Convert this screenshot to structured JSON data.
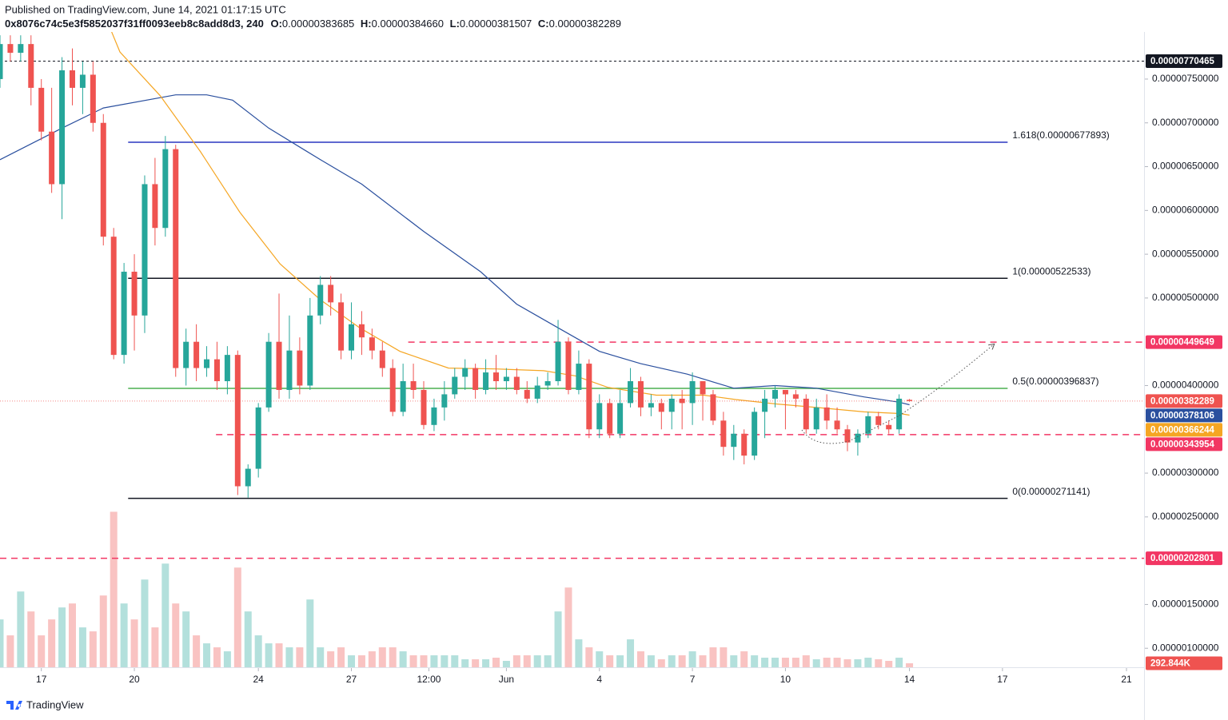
{
  "header": {
    "published": "Published on TradingView.com, June 14, 2021 01:17:15 UTC",
    "symbol": "0x8076c74c5e3f5852037f31ff0093eeb8c8add8d3, 240",
    "ohlc": [
      {
        "key": "O:",
        "value": "0.00000383685"
      },
      {
        "key": "H:",
        "value": "0.00000384660"
      },
      {
        "key": "L:",
        "value": "0.00000381507"
      },
      {
        "key": "C:",
        "value": "0.00000382289"
      }
    ]
  },
  "footer": {
    "brand": "TradingView"
  },
  "chart_data": {
    "type": "candlestick",
    "xlim": [
      0,
      110.7
    ],
    "xticks": [
      {
        "value": 4,
        "label": "17"
      },
      {
        "value": 13,
        "label": "20"
      },
      {
        "value": 25,
        "label": "24"
      },
      {
        "value": 34,
        "label": "27"
      },
      {
        "value": 41.5,
        "label": "12:00"
      },
      {
        "value": 49,
        "label": "Jun"
      },
      {
        "value": 58,
        "label": "4"
      },
      {
        "value": 67,
        "label": "7"
      },
      {
        "value": 76,
        "label": "10"
      },
      {
        "value": 88,
        "label": "14"
      },
      {
        "value": 97,
        "label": "17"
      },
      {
        "value": 109,
        "label": "21"
      }
    ],
    "ylim": [
      7.83e-07,
      8.038e-06
    ],
    "yticks": [
      {
        "value": 7.5e-06,
        "label": "0.00000750000"
      },
      {
        "value": 7e-06,
        "label": "0.00000700000"
      },
      {
        "value": 6.5e-06,
        "label": "0.00000650000"
      },
      {
        "value": 6e-06,
        "label": "0.00000600000"
      },
      {
        "value": 5.5e-06,
        "label": "0.00000550000"
      },
      {
        "value": 5e-06,
        "label": "0.00000500000"
      },
      {
        "value": 4e-06,
        "label": "0.00000400000"
      },
      {
        "value": 3e-06,
        "label": "0.00000300000"
      },
      {
        "value": 2.5e-06,
        "label": "0.00000250000"
      },
      {
        "value": 1.5e-06,
        "label": "0.00000150000"
      },
      {
        "value": 1e-06,
        "label": "0.00000100000"
      }
    ],
    "up_color": "#26a69a",
    "down_color": "#ef5350",
    "open": [
      7.5e-06,
      7.9e-06,
      7.8e-06,
      7.9e-06,
      7.4e-06,
      6.9e-06,
      6.3e-06,
      7.6e-06,
      7.4e-06,
      7.55e-06,
      7e-06,
      5.7e-06,
      4.35e-06,
      5.3e-06,
      4.8e-06,
      6.3e-06,
      5.8e-06,
      6.7e-06,
      4.2e-06,
      4.5e-06,
      4.2e-06,
      4.3e-06,
      4.05e-06,
      4.35e-06,
      2.85e-06,
      3.05e-06,
      3.75e-06,
      4.5e-06,
      3.95e-06,
      4.4e-06,
      4e-06,
      4.8e-06,
      5.15e-06,
      4.95e-06,
      4.4e-06,
      4.7e-06,
      4.55e-06,
      4.4e-06,
      4.2e-06,
      3.7e-06,
      4.05e-06,
      3.95e-06,
      3.55e-06,
      3.75e-06,
      3.9e-06,
      4.1e-06,
      4.2e-06,
      3.95e-06,
      4.15e-06,
      4.05e-06,
      4.1e-06,
      3.95e-06,
      3.85e-06,
      4e-06,
      4.05e-06,
      4.5e-06,
      3.95e-06,
      4.25e-06,
      3.5e-06,
      3.8e-06,
      3.45e-06,
      3.8e-06,
      4.05e-06,
      3.75e-06,
      3.8e-06,
      3.7e-06,
      3.85e-06,
      3.8e-06,
      4.05e-06,
      3.9e-06,
      3.6e-06,
      3.3e-06,
      3.45e-06,
      3.2e-06,
      3.7e-06,
      3.85e-06,
      3.95e-06,
      3.9e-06,
      3.85e-06,
      3.5e-06,
      3.75e-06,
      3.6e-06,
      3.5e-06,
      3.35e-06,
      3.45e-06,
      3.65e-06,
      3.55e-06,
      3.5e-06,
      3.83685e-06
    ],
    "high": [
      8e-06,
      8e-06,
      8e-06,
      8e-06,
      7.5e-06,
      7.4e-06,
      7.75e-06,
      7.85e-06,
      7.7e-06,
      7.7e-06,
      7.1e-06,
      5.8e-06,
      5.4e-06,
      5.5e-06,
      6.4e-06,
      6.6e-06,
      6.85e-06,
      6.75e-06,
      4.65e-06,
      4.7e-06,
      4.45e-06,
      4.5e-06,
      4.45e-06,
      4.4e-06,
      3.1e-06,
      3.8e-06,
      4.6e-06,
      5.05e-06,
      4.8e-06,
      4.55e-06,
      5e-06,
      5.25e-06,
      5.25e-06,
      5.05e-06,
      4.95e-06,
      4.85e-06,
      4.65e-06,
      4.5e-06,
      4.3e-06,
      4.25e-06,
      4.25e-06,
      4.05e-06,
      3.85e-06,
      4.05e-06,
      4.2e-06,
      4.3e-06,
      4.25e-06,
      4.3e-06,
      4.35e-06,
      4.2e-06,
      4.2e-06,
      4.05e-06,
      4.1e-06,
      4.15e-06,
      4.75e-06,
      4.55e-06,
      4.4e-06,
      4.3e-06,
      3.9e-06,
      3.85e-06,
      3.95e-06,
      4.2e-06,
      4.1e-06,
      3.9e-06,
      3.85e-06,
      3.9e-06,
      3.95e-06,
      4.15e-06,
      4.05e-06,
      3.95e-06,
      3.7e-06,
      3.55e-06,
      3.5e-06,
      3.75e-06,
      3.95e-06,
      4e-06,
      3.95e-06,
      3.95e-06,
      3.9e-06,
      3.85e-06,
      3.9e-06,
      3.75e-06,
      3.55e-06,
      3.5e-06,
      3.7e-06,
      3.7e-06,
      3.6e-06,
      3.9e-06,
      3.8466e-06
    ],
    "low": [
      7.4e-06,
      7.7e-06,
      7.7e-06,
      7.2e-06,
      6.8e-06,
      6.2e-06,
      5.9e-06,
      7.2e-06,
      7.1e-06,
      6.9e-06,
      5.6e-06,
      4.3e-06,
      4.25e-06,
      4.4e-06,
      4.6e-06,
      5.6e-06,
      5.7e-06,
      4.1e-06,
      4e-06,
      4.05e-06,
      4.1e-06,
      3.95e-06,
      3.9e-06,
      2.75e-06,
      2.72e-06,
      2.95e-06,
      3.7e-06,
      3.85e-06,
      3.85e-06,
      3.9e-06,
      3.95e-06,
      4.7e-06,
      4.8e-06,
      4.3e-06,
      4.3e-06,
      4.35e-06,
      4.3e-06,
      4.1e-06,
      3.65e-06,
      3.65e-06,
      3.85e-06,
      3.5e-06,
      3.48e-06,
      3.6e-06,
      3.85e-06,
      3.95e-06,
      3.85e-06,
      3.9e-06,
      3.95e-06,
      3.95e-06,
      3.9e-06,
      3.8e-06,
      3.8e-06,
      3.95e-06,
      4e-06,
      3.9e-06,
      3.9e-06,
      3.4e-06,
      3.4e-06,
      3.4e-06,
      3.4e-06,
      3.75e-06,
      3.65e-06,
      3.65e-06,
      3.5e-06,
      3.5e-06,
      3.5e-06,
      3.55e-06,
      3.6e-06,
      3.55e-06,
      3.2e-06,
      3.15e-06,
      3.1e-06,
      3.15e-06,
      3.4e-06,
      3.75e-06,
      3.5e-06,
      3.75e-06,
      3.45e-06,
      3.45e-06,
      3.5e-06,
      3.45e-06,
      3.25e-06,
      3.2e-06,
      3.4e-06,
      3.5e-06,
      3.45e-06,
      3.45e-06,
      3.81507e-06
    ],
    "close": [
      7.9e-06,
      7.8e-06,
      7.9e-06,
      7.4e-06,
      6.9e-06,
      6.3e-06,
      7.6e-06,
      7.4e-06,
      7.55e-06,
      7e-06,
      5.7e-06,
      4.35e-06,
      5.3e-06,
      4.8e-06,
      6.3e-06,
      5.8e-06,
      6.7e-06,
      4.2e-06,
      4.5e-06,
      4.2e-06,
      4.3e-06,
      4.05e-06,
      4.35e-06,
      2.85e-06,
      3.05e-06,
      3.75e-06,
      4.5e-06,
      3.95e-06,
      4.4e-06,
      4e-06,
      4.8e-06,
      5.15e-06,
      4.95e-06,
      4.4e-06,
      4.7e-06,
      4.55e-06,
      4.4e-06,
      4.2e-06,
      3.7e-06,
      4.05e-06,
      3.95e-06,
      3.55e-06,
      3.75e-06,
      3.9e-06,
      4.1e-06,
      4.2e-06,
      3.95e-06,
      4.15e-06,
      4.05e-06,
      4.1e-06,
      3.95e-06,
      3.85e-06,
      4e-06,
      4.05e-06,
      4.5e-06,
      3.95e-06,
      4.25e-06,
      3.5e-06,
      3.8e-06,
      3.45e-06,
      3.8e-06,
      4.05e-06,
      3.75e-06,
      3.8e-06,
      3.7e-06,
      3.85e-06,
      3.8e-06,
      4.05e-06,
      3.9e-06,
      3.6e-06,
      3.3e-06,
      3.45e-06,
      3.2e-06,
      3.7e-06,
      3.85e-06,
      3.95e-06,
      3.9e-06,
      3.85e-06,
      3.5e-06,
      3.75e-06,
      3.6e-06,
      3.5e-06,
      3.35e-06,
      3.45e-06,
      3.65e-06,
      3.55e-06,
      3.5e-06,
      3.85e-06,
      3.82289e-06
    ],
    "close_label": "0.00000382289",
    "volume_lim": [
      0,
      13800000
    ],
    "volume": [
      3516000,
      2344000,
      5567000,
      4102000,
      2344000,
      3516000,
      4395000,
      4688000,
      2930000,
      2637000,
      5274000,
      11427000,
      4688000,
      3516000,
      6446000,
      2930000,
      7618000,
      4688000,
      4102000,
      2344000,
      1758000,
      1465000,
      1172000,
      7325000,
      4102000,
      2344000,
      1758000,
      1758000,
      1465000,
      1465000,
      4981000,
      1465000,
      1172000,
      1465000,
      879000,
      879000,
      1172000,
      1465000,
      1465000,
      1172000,
      879000,
      879000,
      879000,
      879000,
      879000,
      586000,
      586000,
      586000,
      703000,
      469000,
      879000,
      879000,
      879000,
      879000,
      4102000,
      5860000,
      2051000,
      1465000,
      1172000,
      879000,
      879000,
      2051000,
      1172000,
      879000,
      586000,
      879000,
      879000,
      1172000,
      879000,
      1465000,
      1465000,
      879000,
      1172000,
      879000,
      703000,
      703000,
      703000,
      703000,
      879000,
      586000,
      703000,
      703000,
      586000,
      586000,
      703000,
      586000,
      469000,
      703000,
      292844
    ],
    "volume_tag": {
      "value": 292844,
      "label": "292.844K"
    },
    "ma": [
      {
        "color": "#2a4f9e",
        "x": [
          0,
          6,
          10,
          17,
          20,
          22.5,
          26,
          31,
          35,
          41,
          46.5,
          50,
          54,
          58,
          62,
          66.5,
          71,
          75,
          79,
          83.6,
          87,
          88
        ],
        "values": [
          6.58e-06,
          6.94e-06,
          7.17e-06,
          7.32e-06,
          7.32e-06,
          7.26e-06,
          6.94e-06,
          6.58e-06,
          6.3e-06,
          5.76e-06,
          5.3e-06,
          4.93e-06,
          4.66e-06,
          4.39e-06,
          4.25e-06,
          4.13e-06,
          3.97e-06,
          4e-06,
          3.97e-06,
          3.87e-06,
          3.81e-06,
          3.78106e-06
        ],
        "last_label": "0.00000378106"
      },
      {
        "color": "#f5a623",
        "x": [
          10.8,
          11.6,
          15.5,
          19.4,
          23.2,
          27.1,
          31,
          34.8,
          38.7,
          43.4,
          48,
          52.6,
          55.7,
          58.8,
          63.5,
          68.1,
          71.2,
          75.1,
          79,
          83.6,
          87.1,
          88
        ],
        "values": [
          8.04e-06,
          7.81e-06,
          7.31e-06,
          6.67e-06,
          5.98e-06,
          5.39e-06,
          4.98e-06,
          4.66e-06,
          4.39e-06,
          4.2e-06,
          4.19e-06,
          4.17e-06,
          4.11e-06,
          3.98e-06,
          3.89e-06,
          3.89e-06,
          3.84e-06,
          3.79e-06,
          3.75e-06,
          3.7e-06,
          3.68e-06,
          3.66244e-06
        ],
        "last_label": "0.00000366244"
      }
    ],
    "levels": [
      {
        "value": 7.70465e-06,
        "label": "0.00000770465",
        "color": "#131722",
        "style": "dotted"
      },
      {
        "value": 4.49649e-06,
        "label": "0.00000449649",
        "color": "#f23663",
        "style": "dashed"
      },
      {
        "value": 3.43954e-06,
        "label": "0.00000343954",
        "color": "#f23663",
        "style": "dashed"
      },
      {
        "value": 2.02801e-06,
        "label": "0.00000202801",
        "color": "#f23663",
        "style": "dashed"
      }
    ],
    "fib": [
      {
        "value": 6.77893e-06,
        "label": "1.618(0.00000677893)",
        "color": "#2a37c0"
      },
      {
        "value": 5.22533e-06,
        "label": "1(0.00000522533)",
        "color": "#131722"
      },
      {
        "value": 3.96837e-06,
        "label": "0.5(0.00000396837)",
        "color": "#4caf50"
      },
      {
        "value": 2.71141e-06,
        "label": "0(0.00000271141)",
        "color": "#131722"
      }
    ]
  }
}
